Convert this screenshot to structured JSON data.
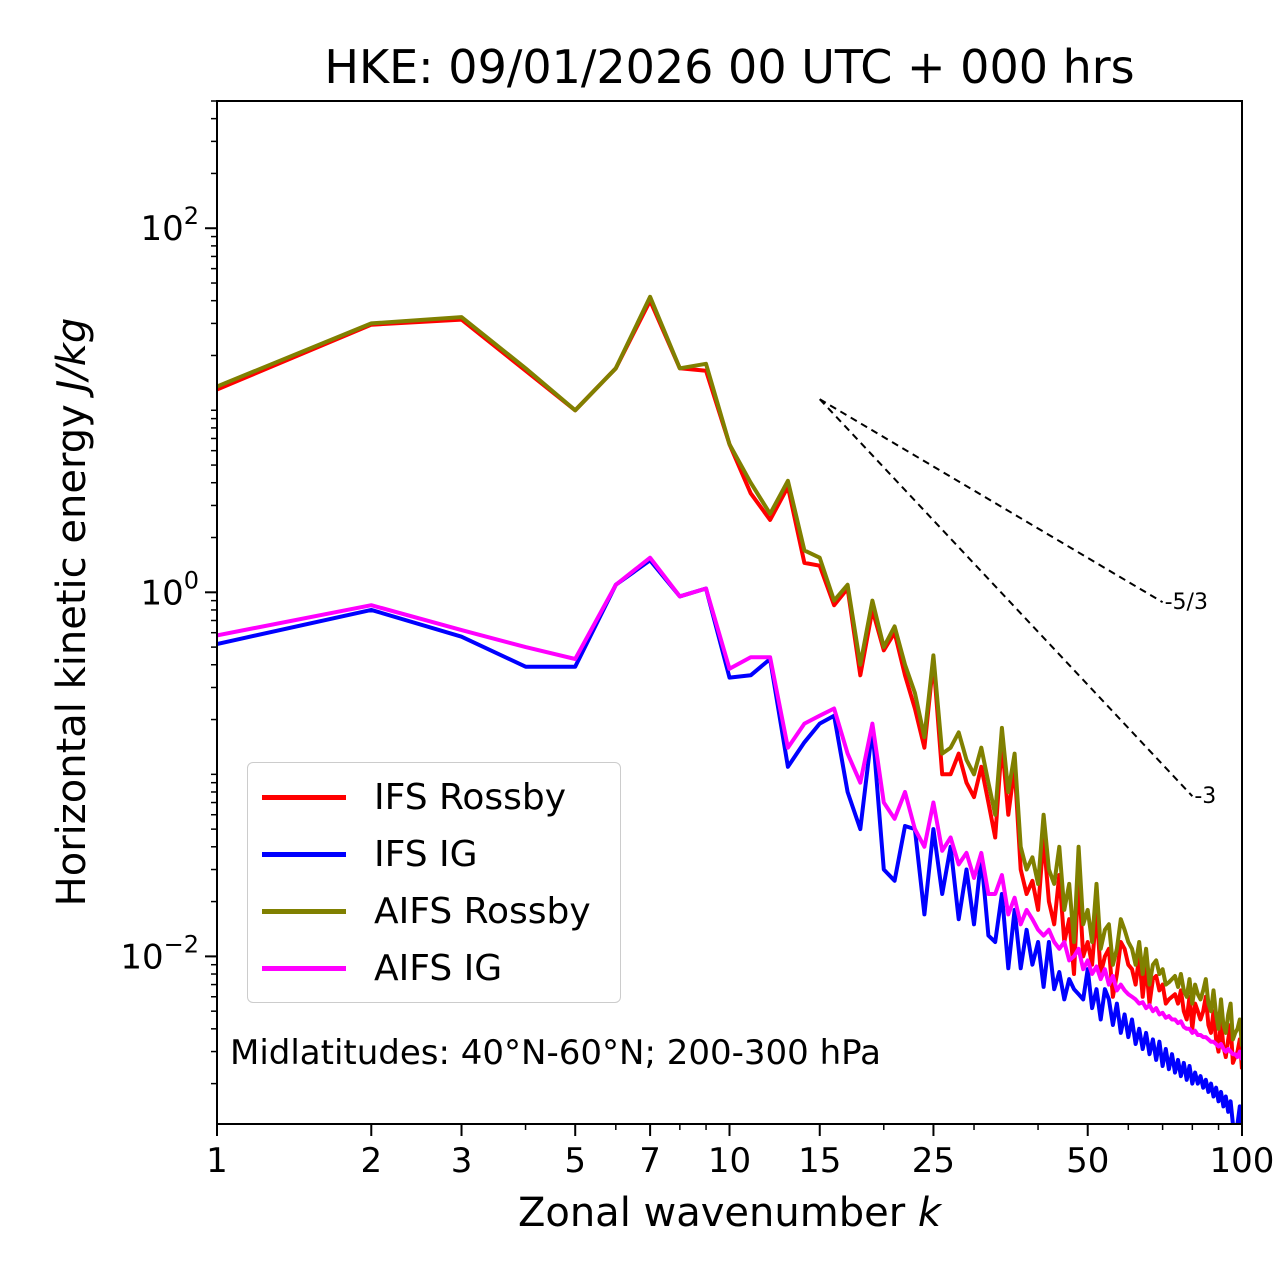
{
  "chart_data": {
    "type": "line",
    "title": "HKE: 09/01/2026 00 UTC + 000 hrs",
    "xlabel": "Zonal wavenumber",
    "xlabel_var": "k",
    "ylabel": "Horizontal kinetic energy",
    "ylabel_unit": "J/kg",
    "xscale": "log",
    "yscale": "log",
    "xlim": [
      1,
      100
    ],
    "ylim": [
      0.0012,
      500
    ],
    "xticks": [
      1,
      2,
      3,
      5,
      7,
      10,
      15,
      25,
      50,
      100
    ],
    "xtick_labels": [
      "1",
      "2",
      "3",
      "5",
      "7",
      "10",
      "15",
      "25",
      "50",
      "100"
    ],
    "ytick_labels": [
      {
        "value": 100,
        "base": "10",
        "exp": "2"
      },
      {
        "value": 1,
        "base": "10",
        "exp": "0"
      },
      {
        "value": 0.01,
        "base": "10",
        "exp": "−2"
      }
    ],
    "annotation": "Midlatitudes: 40°N-60°N; 200-300 hPa",
    "legend_position": "lower-left",
    "slope_lines": [
      {
        "label": "-5/3",
        "slope": -1.6667,
        "x": [
          15,
          70
        ],
        "y0": 11.5
      },
      {
        "label": "-3",
        "slope": -3,
        "x": [
          15,
          80
        ],
        "y0": 11.5
      }
    ],
    "x": [
      1,
      2,
      3,
      4,
      5,
      6,
      7,
      8,
      9,
      10,
      11,
      12,
      13,
      14,
      15,
      16,
      17,
      18,
      19,
      20,
      21,
      22,
      23,
      24,
      25,
      26,
      27,
      28,
      29,
      30,
      31,
      32,
      33,
      34,
      35,
      36,
      37,
      38,
      39,
      40,
      41,
      42,
      43,
      44,
      45,
      46,
      47,
      48,
      49,
      50,
      51,
      52,
      53,
      54,
      55,
      56,
      57,
      58,
      59,
      60,
      61,
      62,
      63,
      64,
      65,
      66,
      67,
      68,
      69,
      70,
      71,
      72,
      73,
      74,
      75,
      76,
      77,
      78,
      79,
      80,
      81,
      82,
      83,
      84,
      85,
      86,
      87,
      88,
      89,
      90,
      91,
      92,
      93,
      94,
      95,
      96,
      97,
      98,
      99,
      100
    ],
    "series": [
      {
        "name": "IFS Rossby",
        "color": "#ff0000",
        "values": [
          13,
          29.5,
          31.5,
          16.5,
          10,
          17,
          40,
          17,
          16.5,
          6.5,
          3.5,
          2.5,
          3.8,
          1.45,
          1.4,
          0.85,
          1.05,
          0.35,
          0.8,
          0.48,
          0.6,
          0.35,
          0.23,
          0.14,
          0.42,
          0.1,
          0.1,
          0.13,
          0.09,
          0.075,
          0.11,
          0.07,
          0.045,
          0.15,
          0.06,
          0.11,
          0.03,
          0.022,
          0.026,
          0.018,
          0.045,
          0.02,
          0.015,
          0.028,
          0.012,
          0.016,
          0.008,
          0.028,
          0.01,
          0.012,
          0.009,
          0.018,
          0.008,
          0.01,
          0.011,
          0.006,
          0.008,
          0.012,
          0.011,
          0.009,
          0.0085,
          0.007,
          0.01,
          0.006,
          0.009,
          0.0055,
          0.0075,
          0.0078,
          0.0065,
          0.007,
          0.0055,
          0.0058,
          0.006,
          0.0062,
          0.0055,
          0.0065,
          0.005,
          0.0045,
          0.006,
          0.004,
          0.0055,
          0.005,
          0.0045,
          0.005,
          0.006,
          0.0042,
          0.0038,
          0.005,
          0.0035,
          0.003,
          0.0045,
          0.0032,
          0.0028,
          0.0035,
          0.0042,
          0.0026,
          0.0028,
          0.003,
          0.0035,
          0.0024
        ]
      },
      {
        "name": "IFS IG",
        "color": "#0000ff",
        "values": [
          0.52,
          0.8,
          0.57,
          0.39,
          0.39,
          1.1,
          1.5,
          0.95,
          1.05,
          0.34,
          0.35,
          0.43,
          0.11,
          0.15,
          0.19,
          0.21,
          0.08,
          0.05,
          0.18,
          0.03,
          0.026,
          0.052,
          0.05,
          0.017,
          0.05,
          0.022,
          0.04,
          0.016,
          0.03,
          0.015,
          0.035,
          0.013,
          0.012,
          0.022,
          0.0086,
          0.018,
          0.0086,
          0.014,
          0.009,
          0.012,
          0.0068,
          0.012,
          0.0066,
          0.0082,
          0.0058,
          0.0075,
          0.0066,
          0.0062,
          0.0058,
          0.0085,
          0.0052,
          0.0066,
          0.0045,
          0.0066,
          0.0058,
          0.0042,
          0.0055,
          0.0038,
          0.0048,
          0.0036,
          0.0045,
          0.0033,
          0.004,
          0.0031,
          0.0038,
          0.0029,
          0.0035,
          0.0027,
          0.0034,
          0.0025,
          0.0031,
          0.0024,
          0.0029,
          0.0023,
          0.0027,
          0.0022,
          0.0026,
          0.0021,
          0.0025,
          0.002,
          0.0023,
          0.002,
          0.0022,
          0.0019,
          0.0021,
          0.0018,
          0.002,
          0.0017,
          0.0019,
          0.0016,
          0.0018,
          0.0015,
          0.0017,
          0.0014,
          0.0016,
          0.0012,
          0.0011,
          0.0012,
          0.0015,
          0.0011
        ]
      },
      {
        "name": "AIFS Rossby",
        "color": "#808000",
        "values": [
          13.5,
          30,
          32.5,
          17,
          10,
          17,
          42,
          17,
          18,
          6.5,
          4,
          2.7,
          4.1,
          1.7,
          1.55,
          0.9,
          1.1,
          0.4,
          0.9,
          0.5,
          0.65,
          0.4,
          0.28,
          0.16,
          0.45,
          0.13,
          0.14,
          0.17,
          0.12,
          0.1,
          0.14,
          0.09,
          0.06,
          0.18,
          0.08,
          0.13,
          0.04,
          0.03,
          0.035,
          0.025,
          0.06,
          0.03,
          0.025,
          0.04,
          0.018,
          0.025,
          0.012,
          0.04,
          0.015,
          0.018,
          0.012,
          0.025,
          0.011,
          0.014,
          0.015,
          0.009,
          0.011,
          0.016,
          0.014,
          0.012,
          0.011,
          0.009,
          0.012,
          0.008,
          0.011,
          0.007,
          0.009,
          0.0095,
          0.008,
          0.0085,
          0.007,
          0.0072,
          0.0075,
          0.0078,
          0.0068,
          0.008,
          0.0065,
          0.006,
          0.0075,
          0.0055,
          0.007,
          0.0062,
          0.0058,
          0.0065,
          0.0075,
          0.0055,
          0.005,
          0.0065,
          0.0048,
          0.004,
          0.0058,
          0.0042,
          0.0038,
          0.0048,
          0.0055,
          0.0035,
          0.0038,
          0.004,
          0.0045,
          0.0032
        ]
      },
      {
        "name": "AIFS IG",
        "color": "#ff00ff",
        "values": [
          0.58,
          0.85,
          0.62,
          0.5,
          0.43,
          1.1,
          1.55,
          0.95,
          1.05,
          0.38,
          0.44,
          0.44,
          0.14,
          0.19,
          0.21,
          0.23,
          0.13,
          0.09,
          0.19,
          0.07,
          0.057,
          0.08,
          0.05,
          0.04,
          0.07,
          0.038,
          0.045,
          0.032,
          0.037,
          0.027,
          0.037,
          0.022,
          0.022,
          0.028,
          0.017,
          0.021,
          0.015,
          0.018,
          0.016,
          0.014,
          0.013,
          0.014,
          0.012,
          0.011,
          0.012,
          0.0095,
          0.01,
          0.011,
          0.0085,
          0.0095,
          0.008,
          0.0088,
          0.0075,
          0.0085,
          0.007,
          0.0078,
          0.0065,
          0.007,
          0.0065,
          0.0062,
          0.006,
          0.0058,
          0.0055,
          0.0056,
          0.0052,
          0.0054,
          0.005,
          0.0052,
          0.0048,
          0.0049,
          0.0046,
          0.0047,
          0.0045,
          0.0045,
          0.0043,
          0.0044,
          0.0041,
          0.004,
          0.004,
          0.0038,
          0.0039,
          0.0037,
          0.0037,
          0.0036,
          0.0036,
          0.0035,
          0.0034,
          0.0034,
          0.0033,
          0.0032,
          0.0033,
          0.0031,
          0.003,
          0.0031,
          0.003,
          0.0029,
          0.0029,
          0.0028,
          0.003,
          0.0027
        ]
      }
    ]
  }
}
